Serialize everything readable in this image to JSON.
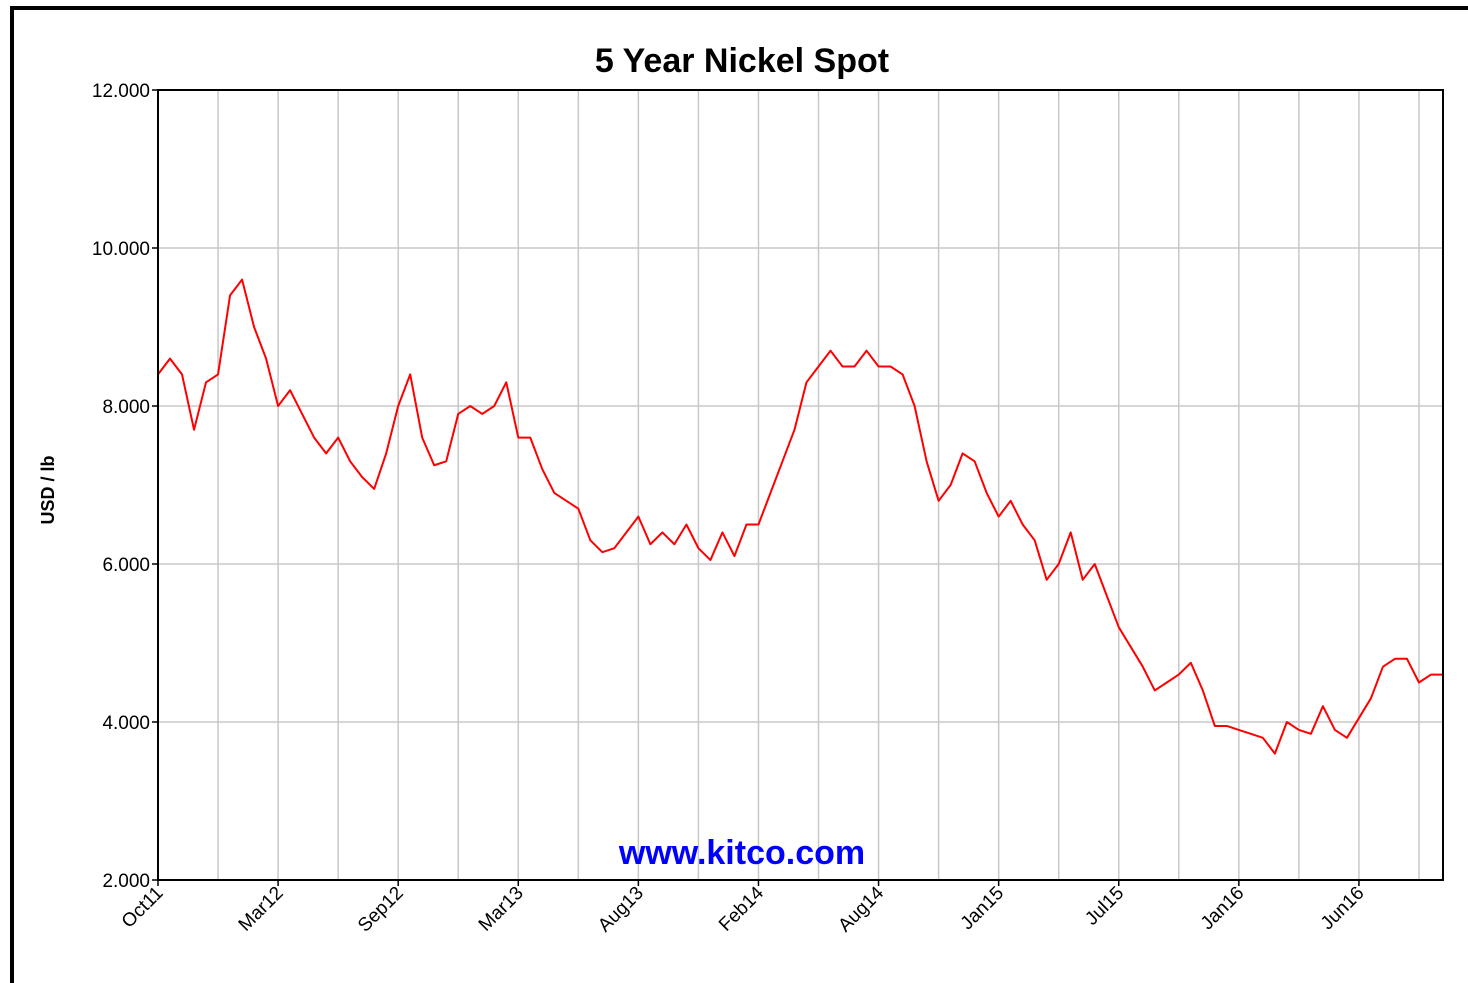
{
  "chart_data": {
    "type": "line",
    "title": "5 Year Nickel Spot",
    "y_label": "USD / lb",
    "annotation": "www.kitco.com",
    "grid": true,
    "categories": [
      "Oct11",
      null,
      null,
      null,
      null,
      null,
      null,
      null,
      null,
      null,
      "Mar12",
      null,
      null,
      null,
      null,
      null,
      null,
      null,
      null,
      null,
      "Sep12",
      null,
      null,
      null,
      null,
      null,
      null,
      null,
      null,
      null,
      "Mar13",
      null,
      null,
      null,
      null,
      null,
      null,
      null,
      null,
      null,
      "Aug13",
      null,
      null,
      null,
      null,
      null,
      null,
      null,
      null,
      null,
      "Feb14",
      null,
      null,
      null,
      null,
      null,
      null,
      null,
      null,
      null,
      "Aug14",
      null,
      null,
      null,
      null,
      null,
      null,
      null,
      null,
      null,
      "Jan15",
      null,
      null,
      null,
      null,
      null,
      null,
      null,
      null,
      null,
      "Jul15",
      null,
      null,
      null,
      null,
      null,
      null,
      null,
      null,
      null,
      "Jan16",
      null,
      null,
      null,
      null,
      null,
      null,
      null,
      null,
      null,
      "Jun16",
      null,
      null,
      null,
      null,
      null,
      null,
      null
    ],
    "series": [
      {
        "name": "Nickel",
        "color": "#ff0000",
        "values": [
          8.4,
          8.6,
          8.4,
          7.7,
          8.3,
          8.4,
          9.4,
          9.6,
          9.0,
          8.6,
          8.0,
          8.2,
          7.9,
          7.6,
          7.4,
          7.6,
          7.3,
          7.1,
          6.95,
          7.4,
          8.0,
          8.4,
          7.6,
          7.25,
          7.3,
          7.9,
          8.0,
          7.9,
          8.0,
          8.3,
          7.6,
          7.6,
          7.2,
          6.9,
          6.8,
          6.7,
          6.3,
          6.15,
          6.2,
          6.4,
          6.6,
          6.25,
          6.4,
          6.25,
          6.5,
          6.2,
          6.05,
          6.4,
          6.1,
          6.5,
          6.5,
          6.9,
          7.3,
          7.7,
          8.3,
          8.5,
          8.7,
          8.5,
          8.5,
          8.7,
          8.5,
          8.5,
          8.4,
          8.0,
          7.3,
          6.8,
          7.0,
          7.4,
          7.3,
          6.9,
          6.6,
          6.8,
          6.5,
          6.3,
          5.8,
          6.0,
          6.4,
          5.8,
          6.0,
          5.6,
          5.2,
          4.95,
          4.7,
          4.4,
          4.5,
          4.6,
          4.75,
          4.4,
          3.95,
          3.95,
          3.9,
          3.85,
          3.8,
          3.6,
          4.0,
          3.9,
          3.85,
          4.2,
          3.9,
          3.8,
          4.05,
          4.3,
          4.7,
          4.8,
          4.8,
          4.5,
          4.6,
          4.6
        ]
      }
    ],
    "ylim": [
      2,
      12
    ],
    "yticks": [
      {
        "value": 2,
        "label": "2.000"
      },
      {
        "value": 4,
        "label": "4.000"
      },
      {
        "value": 6,
        "label": "6.000"
      },
      {
        "value": 8,
        "label": "8.000"
      },
      {
        "value": 10,
        "label": "10.000"
      },
      {
        "value": 12,
        "label": "12.000"
      }
    ]
  }
}
